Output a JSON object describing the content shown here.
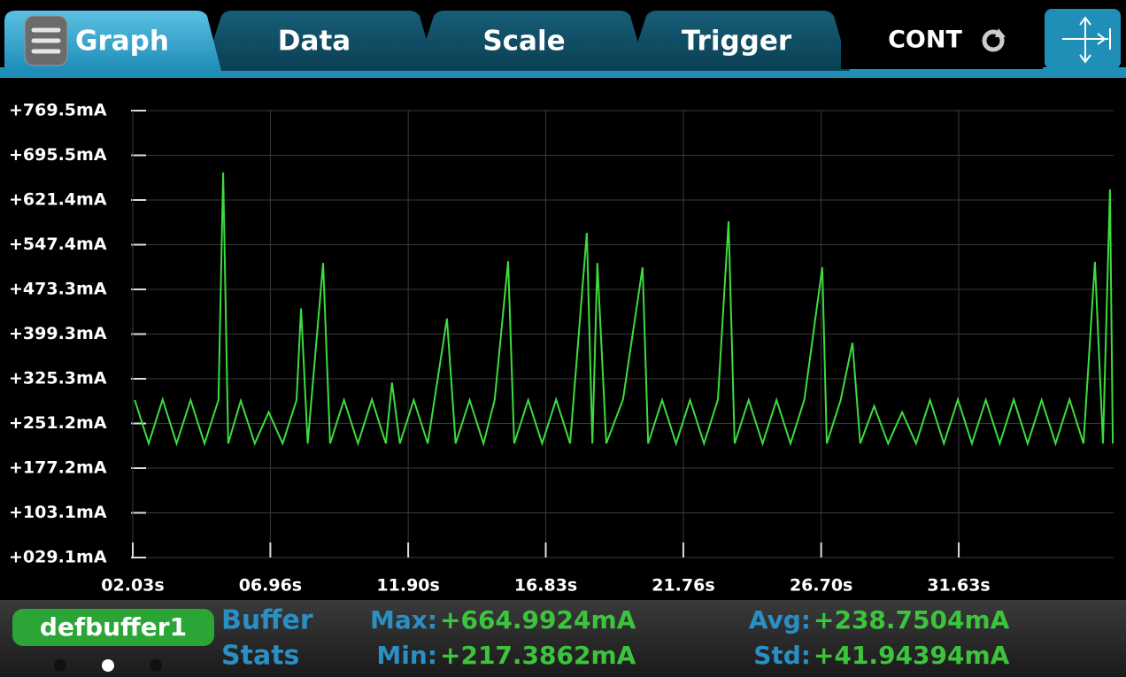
{
  "tabs": [
    {
      "label": "Graph"
    },
    {
      "label": "Data"
    },
    {
      "label": "Scale"
    },
    {
      "label": "Trigger"
    }
  ],
  "trigger_mode": "CONT",
  "chart_data": {
    "type": "line",
    "x": [
      2.1,
      2.6,
      3.1,
      3.6,
      4.1,
      4.6,
      5.1,
      5.27,
      5.45,
      5.9,
      6.4,
      6.9,
      7.4,
      7.9,
      8.06,
      8.3,
      8.85,
      9.1,
      9.6,
      10.1,
      10.6,
      11.1,
      11.32,
      11.6,
      12.1,
      12.6,
      13.29,
      13.6,
      14.1,
      14.6,
      15.0,
      15.48,
      15.7,
      16.2,
      16.7,
      17.2,
      17.7,
      18.3,
      18.5,
      18.68,
      19.0,
      19.6,
      20.3,
      20.5,
      21.0,
      21.5,
      22.0,
      22.5,
      23.0,
      23.38,
      23.6,
      24.1,
      24.6,
      25.1,
      25.6,
      26.1,
      26.74,
      26.9,
      27.4,
      27.82,
      28.1,
      28.6,
      29.1,
      29.6,
      30.1,
      30.6,
      31.1,
      31.6,
      32.1,
      32.6,
      33.1,
      33.6,
      34.1,
      34.6,
      35.1,
      35.6,
      36.1,
      36.51,
      36.8,
      37.05,
      37.15
    ],
    "series": [
      {
        "color": "#3ddc3d",
        "values": [
          290,
          218,
          291,
          218,
          290,
          218,
          290,
          667,
          218,
          289,
          218,
          270,
          218,
          290,
          442,
          218,
          517,
          218,
          290,
          218,
          291,
          218,
          319,
          218,
          290,
          218,
          425,
          218,
          290,
          218,
          290,
          520,
          218,
          290,
          218,
          291,
          218,
          567,
          218,
          517,
          218,
          291,
          510,
          218,
          290,
          218,
          290,
          218,
          291,
          586,
          218,
          290,
          218,
          290,
          218,
          291,
          510,
          218,
          290,
          385,
          218,
          280,
          218,
          270,
          218,
          290,
          218,
          291,
          218,
          290,
          218,
          291,
          218,
          290,
          218,
          291,
          218,
          519,
          218,
          639,
          218
        ]
      }
    ],
    "xlim": [
      2.03,
      37.18
    ],
    "xticks": [
      {
        "value": 2.03,
        "label": "02.03s"
      },
      {
        "value": 6.96,
        "label": "06.96s"
      },
      {
        "value": 11.9,
        "label": "11.90s"
      },
      {
        "value": 16.83,
        "label": "16.83s"
      },
      {
        "value": 21.76,
        "label": "21.76s"
      },
      {
        "value": 26.7,
        "label": "26.70s"
      },
      {
        "value": 31.63,
        "label": "31.63s"
      }
    ],
    "ylim": [
      29.1,
      769.5
    ],
    "yticks": [
      {
        "value": 29.1,
        "label": "+029.1mA"
      },
      {
        "value": 103.1,
        "label": "+103.1mA"
      },
      {
        "value": 177.2,
        "label": "+177.2mA"
      },
      {
        "value": 251.2,
        "label": "+251.2mA"
      },
      {
        "value": 325.3,
        "label": "+325.3mA"
      },
      {
        "value": 399.3,
        "label": "+399.3mA"
      },
      {
        "value": 473.3,
        "label": "+473.3mA"
      },
      {
        "value": 547.4,
        "label": "+547.4mA"
      },
      {
        "value": 621.4,
        "label": "+621.4mA"
      },
      {
        "value": 695.5,
        "label": "+695.5mA"
      },
      {
        "value": 769.5,
        "label": "+769.5mA"
      }
    ],
    "grid": true
  },
  "buffer": {
    "name": "defbuffer1",
    "stats_title": [
      "Buffer",
      "Stats"
    ],
    "stats": [
      {
        "label": "Max:",
        "value": "+664.9924mA"
      },
      {
        "label": "Min:",
        "value": "+217.3862mA"
      },
      {
        "label": "Avg:",
        "value": "+238.7504mA"
      },
      {
        "label": "Std:",
        "value": "+41.94394mA"
      }
    ]
  }
}
